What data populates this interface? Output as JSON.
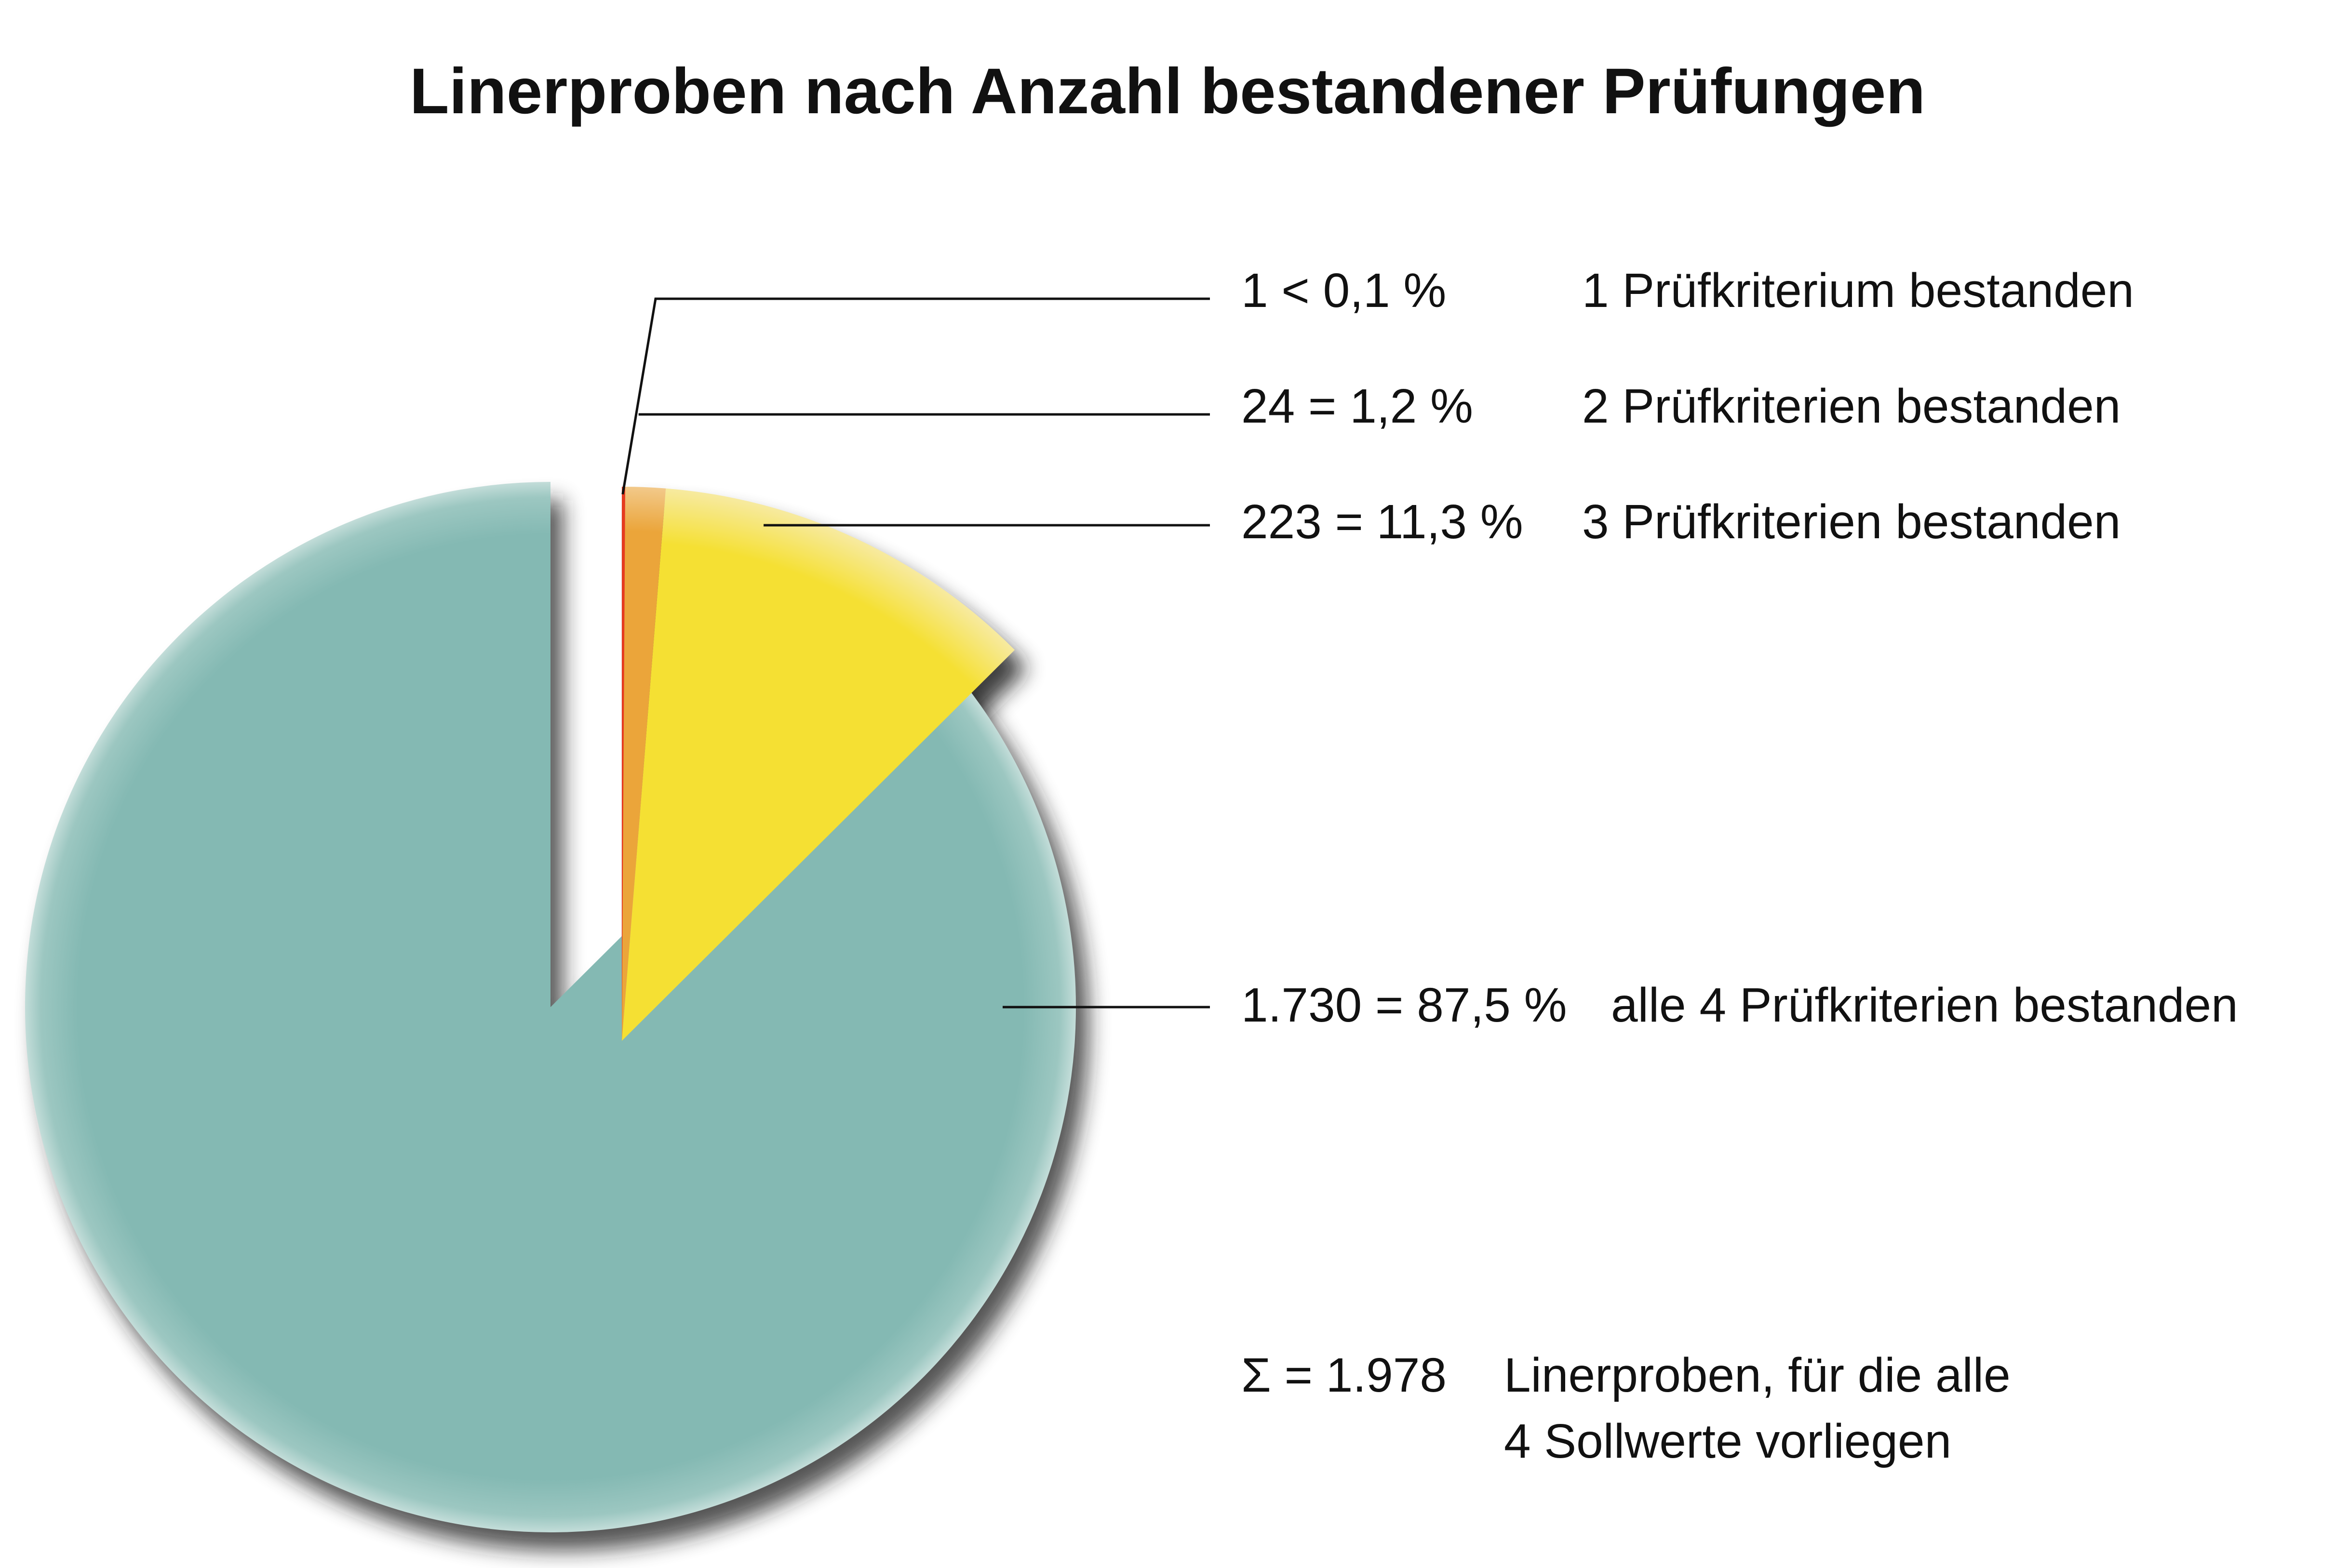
{
  "chart_data": {
    "type": "pie",
    "title": "Linerproben nach Anzahl bestandener Prüfungen",
    "slices": [
      {
        "count": 1,
        "percent": 0.1,
        "value_label": "1 < 0,1 %",
        "label": "1 Prüfkriterium bestanden",
        "color": "#e53a1f"
      },
      {
        "count": 24,
        "percent": 1.2,
        "value_label": "24 = 1,2 %",
        "label": "2 Prüfkriterien bestanden",
        "color": "#eba53a"
      },
      {
        "count": 223,
        "percent": 11.3,
        "value_label": "223 = 11,3 %",
        "label": "3 Prüfkriterien bestanden",
        "color": "#f5e033"
      },
      {
        "count": 1730,
        "percent": 87.5,
        "value_label": "1.730 = 87,5 %",
        "label": "alle 4 Prüfkriterien bestanden",
        "color": "#84b9b3"
      }
    ],
    "total": {
      "value_label": "Σ = 1.978",
      "label_line1": "Linerproben, für die alle",
      "label_line2": "4 Sollwerte vorliegen"
    }
  }
}
